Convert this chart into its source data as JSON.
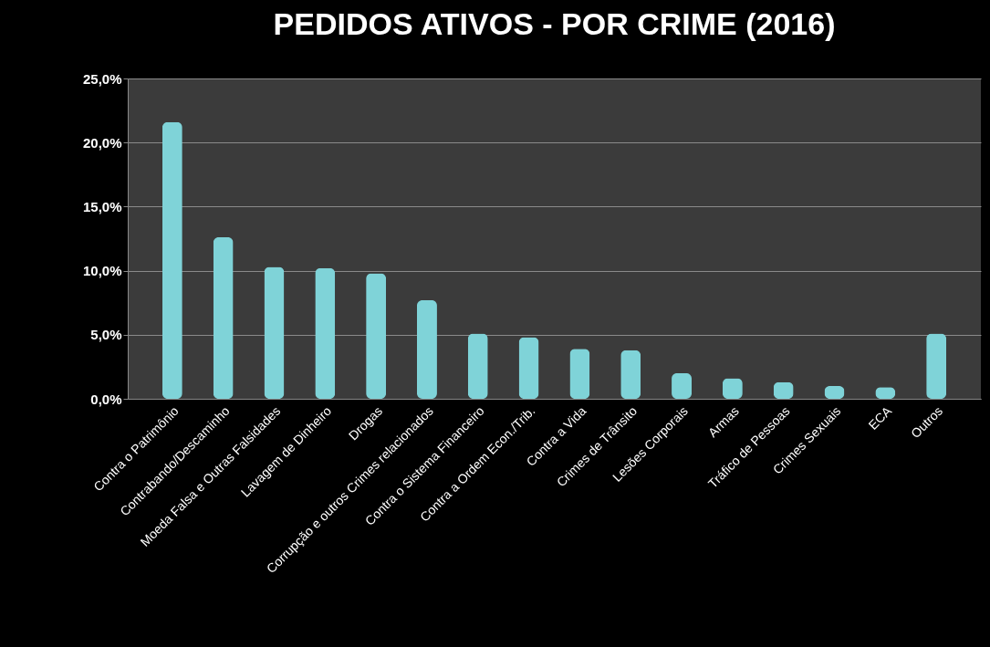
{
  "chart_data": {
    "type": "bar",
    "title": "PEDIDOS ATIVOS - POR CRIME (2016)",
    "categories": [
      "Contra o Patrimônio",
      "Contrabando/Descaminho",
      "Moeda Falsa e Outras Falsidades",
      "Lavagem de Dinheiro",
      "Drogas",
      "Corrupção e outros Crimes relacionados",
      "Contra o Sistema Financeiro",
      "Contra a Ordem Econ./Trib.",
      "Contra a Vida",
      "Crimes de Trânsito",
      "Lesões Corporais",
      "Armas",
      "Tráfico de Pessoas",
      "Crimes Sexuais",
      "ECA",
      "Outros"
    ],
    "values": [
      21.6,
      12.6,
      10.3,
      10.2,
      9.8,
      7.7,
      5.1,
      4.8,
      3.9,
      3.8,
      2.0,
      1.6,
      1.3,
      1.0,
      0.9,
      5.1
    ],
    "color": "#7fd3d8",
    "ylim": [
      0,
      25
    ],
    "yticks": [
      {
        "value": 0,
        "label": "0,0%"
      },
      {
        "value": 5,
        "label": "5,0%"
      },
      {
        "value": 10,
        "label": "10,0%"
      },
      {
        "value": 15,
        "label": "15,0%"
      },
      {
        "value": 20,
        "label": "20,0%"
      },
      {
        "value": 25,
        "label": "25,0%"
      }
    ],
    "grid": "y"
  }
}
